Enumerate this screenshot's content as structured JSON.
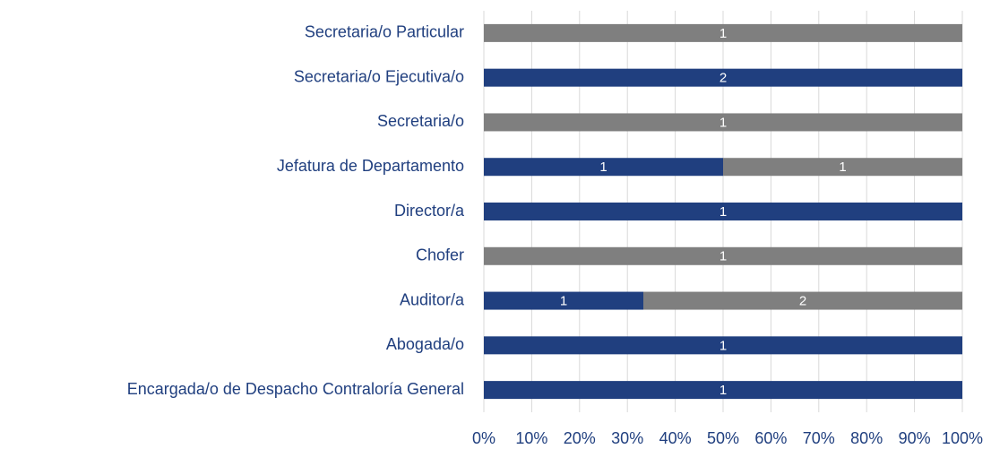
{
  "chart_data": {
    "type": "bar",
    "orientation": "horizontal",
    "stacking": "percent",
    "categories": [
      "Secretaria/o Particular",
      "Secretaria/o Ejecutiva/o",
      "Secretaria/o",
      "Jefatura de Departamento",
      "Director/a",
      "Chofer",
      "Auditor/a",
      "Abogada/o",
      "Encargada/o de Despacho Contraloría General"
    ],
    "series": [
      {
        "color": "#203f7f",
        "values": [
          null,
          2,
          null,
          1,
          1,
          null,
          1,
          1,
          1
        ]
      },
      {
        "color": "#7f7f7f",
        "values": [
          1,
          null,
          1,
          1,
          null,
          1,
          2,
          null,
          null
        ]
      }
    ],
    "xlim": [
      0,
      100
    ],
    "xticks": [
      {
        "value": 0,
        "label": "0%"
      },
      {
        "value": 10,
        "label": "10%"
      },
      {
        "value": 20,
        "label": "20%"
      },
      {
        "value": 30,
        "label": "30%"
      },
      {
        "value": 40,
        "label": "40%"
      },
      {
        "value": 50,
        "label": "50%"
      },
      {
        "value": 60,
        "label": "60%"
      },
      {
        "value": 70,
        "label": "70%"
      },
      {
        "value": 80,
        "label": "80%"
      },
      {
        "value": 90,
        "label": "90%"
      },
      {
        "value": 100,
        "label": "100%"
      }
    ],
    "grid": true
  }
}
